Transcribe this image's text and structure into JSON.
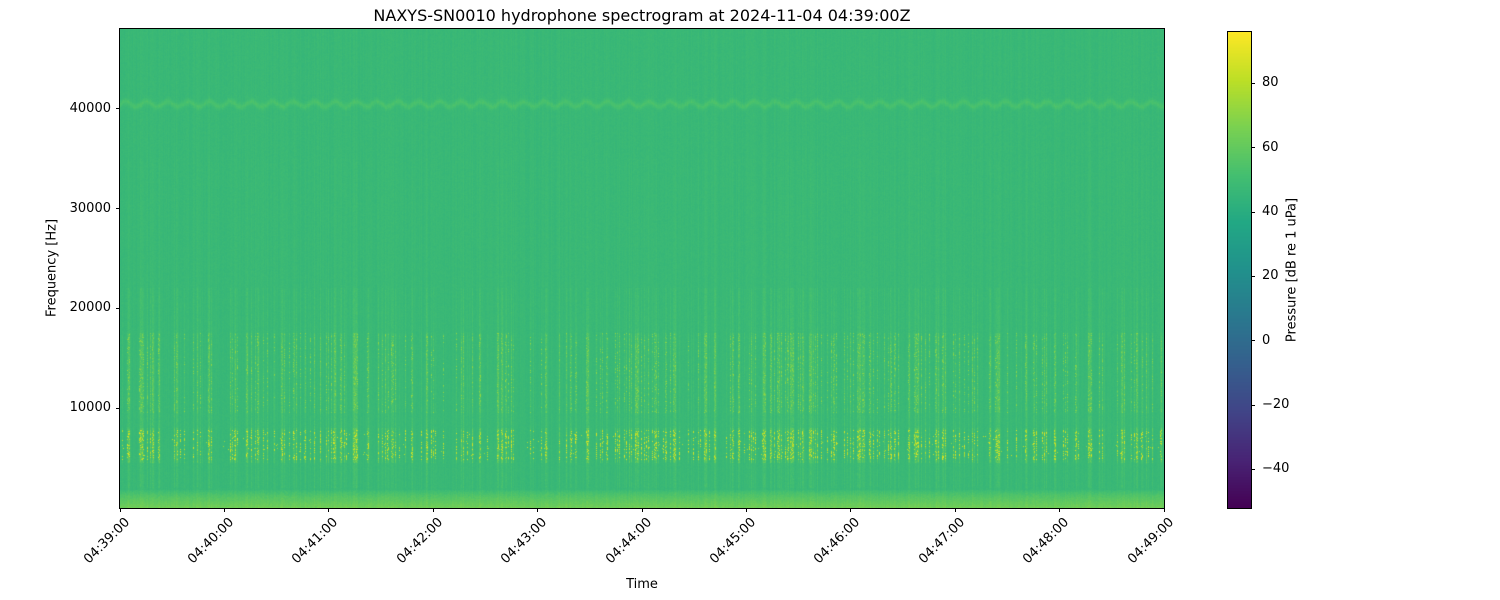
{
  "chart_data": {
    "type": "heatmap",
    "title": "NAXYS-SN0010 hydrophone spectrogram at 2024-11-04 04:39:00Z",
    "xlabel": "Time",
    "ylabel": "Frequency [Hz]",
    "x_ticks": [
      "04:39:00",
      "04:40:00",
      "04:41:00",
      "04:42:00",
      "04:43:00",
      "04:44:00",
      "04:45:00",
      "04:46:00",
      "04:47:00",
      "04:48:00",
      "04:49:00"
    ],
    "x_tick_interval": "1 minute",
    "y_axis": {
      "min": 0,
      "max": 48000,
      "ticks": [
        10000,
        20000,
        30000,
        40000
      ]
    },
    "colorbar": {
      "label": "Pressure [dB re 1 uPa]",
      "colormap": "viridis",
      "vmin": -52,
      "vmax": 96,
      "ticks": [
        80,
        60,
        40,
        20,
        0,
        -20,
        -40
      ],
      "tick_labels": [
        "80",
        "60",
        "40",
        "20",
        "0",
        "−20",
        "−40"
      ]
    },
    "features": {
      "background_level_db": 47,
      "surface_band": {
        "max_hz": 1800,
        "boost_db": 16,
        "description": "brighter yellow-green band along the bottom edge (low-frequency broadband energy)"
      },
      "tonal_line": {
        "hz": 40500,
        "boost_db": 6,
        "description": "faint wavy horizontal tonal line near 40.5 kHz"
      },
      "broadband_bursts": {
        "description": "dense vertical yellow-green streaks (impulsive broadband clicks) throughout the record, strongest ~4.5-8 kHz and ~9.5-17.5 kHz, fading above ~20 kHz",
        "bright_speckle_band_hz": [
          5000,
          7500
        ],
        "speckle_peak_db": 90,
        "streak_band_hz": [
          9500,
          17500
        ],
        "streak_level_db": 60
      }
    }
  }
}
